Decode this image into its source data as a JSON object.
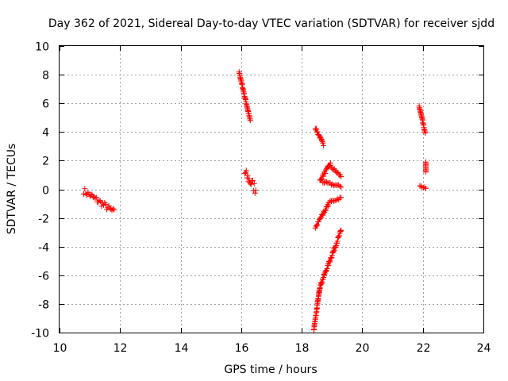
{
  "chart_data": {
    "type": "scatter",
    "title": "Day 362 of 2021, Sidereal Day-to-day VTEC variation (SDTVAR) for receiver sjdd",
    "xlabel": "GPS time / hours",
    "ylabel": "SDTVAR / TECUs",
    "xlim": [
      10,
      24
    ],
    "ylim": [
      -10,
      10
    ],
    "xticks": [
      "10",
      "12",
      "14",
      "16",
      "18",
      "20",
      "22",
      "24"
    ],
    "yticks": [
      "-10",
      "-8",
      "-6",
      "-4",
      "-2",
      "0",
      "2",
      "4",
      "6",
      "8",
      "10"
    ],
    "grid": true,
    "marker": "+",
    "colors": {
      "points": "#ff0000",
      "grid": "#a0a0a0",
      "axes": "#000000"
    },
    "segments": [
      {
        "x": [
          10.8,
          11.8
        ],
        "y": [
          -0.1,
          -1.6
        ],
        "spread": 0.45
      },
      {
        "x": [
          15.93,
          16.3
        ],
        "y": [
          8.2,
          4.8
        ],
        "spread": 0.15
      },
      {
        "x": [
          16.12,
          16.48
        ],
        "y": [
          1.1,
          0.0
        ],
        "spread": 0.8
      },
      {
        "x": [
          18.45,
          18.72
        ],
        "y": [
          4.3,
          3.1
        ],
        "spread": 0.2
      },
      {
        "x": [
          18.45,
          18.9
        ],
        "y": [
          -2.6,
          -1.0
        ],
        "spread": 0.2
      },
      {
        "x": [
          18.9,
          19.3
        ],
        "y": [
          -0.9,
          -0.6
        ],
        "spread": 0.15
      },
      {
        "x": [
          18.6,
          18.95
        ],
        "y": [
          0.6,
          1.8
        ],
        "spread": 0.2
      },
      {
        "x": [
          18.95,
          19.3
        ],
        "y": [
          1.6,
          0.9
        ],
        "spread": 0.2
      },
      {
        "x": [
          18.7,
          19.3
        ],
        "y": [
          0.5,
          0.2
        ],
        "spread": 0.15
      },
      {
        "x": [
          18.4,
          18.6
        ],
        "y": [
          -9.8,
          -6.8
        ],
        "spread": 0.15
      },
      {
        "x": [
          18.6,
          19.3
        ],
        "y": [
          -6.8,
          -2.9
        ],
        "spread": 0.25
      },
      {
        "x": [
          21.88,
          22.08
        ],
        "y": [
          5.8,
          3.9
        ],
        "spread": 0.15
      },
      {
        "x": [
          21.9,
          22.1
        ],
        "y": [
          0.2,
          0.1
        ],
        "spread": 0.1
      },
      {
        "x": [
          22.1,
          22.1
        ],
        "y": [
          1.2,
          1.9
        ],
        "spread": 0.0
      }
    ]
  }
}
